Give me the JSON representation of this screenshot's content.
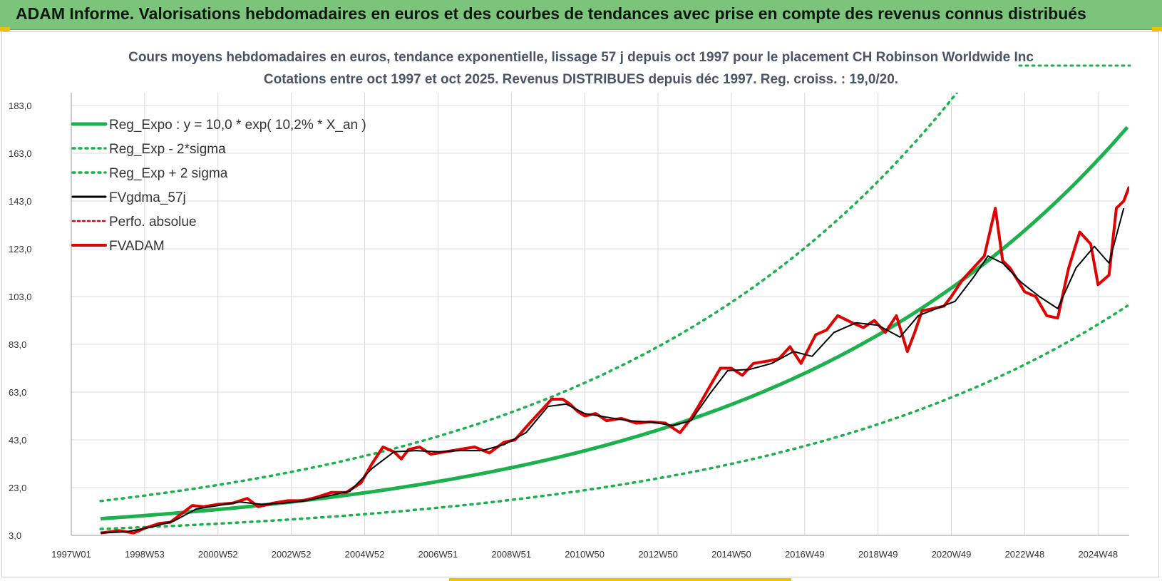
{
  "header": {
    "title": "ADAM Informe. Valorisations hebdomadaires en euros et des courbes de tendances avec prise en compte des revenus connus distribués"
  },
  "colors": {
    "banner": "#7cc47c",
    "regression": "#1db14d",
    "sigma": "#1db14d",
    "gdma": "#000000",
    "adam": "#e00000",
    "perfo": "#e00000",
    "grid": "#d9d9d9"
  },
  "chart_data": {
    "type": "line",
    "title": "Cours moyens hebdomadaires en euros, tendance exponentielle, lissage 57 j depuis oct 1997 pour le placement CH Robinson Worldwide Inc",
    "subtitle": "Cotations entre oct 1997 et oct 2025.  Revenus DISTRIBUES depuis déc 1997. Reg. croiss. : 19,0/20.",
    "xlabel": "",
    "ylabel": "",
    "xlim": [
      1997.0,
      2025.85
    ],
    "ylim": [
      3.0,
      183.0
    ],
    "y_ticks": [
      3.0,
      23.0,
      43.0,
      63.0,
      83.0,
      103.0,
      123.0,
      143.0,
      163.0,
      183.0
    ],
    "y_tick_labels": [
      "3,0",
      "23,0",
      "43,0",
      "63,0",
      "83,0",
      "103,0",
      "123,0",
      "143,0",
      "163,0",
      "183,0"
    ],
    "x_ticks": [
      1997.0,
      1999.0,
      2001.0,
      2003.0,
      2005.0,
      2007.0,
      2009.0,
      2011.0,
      2013.0,
      2015.0,
      2017.0,
      2019.0,
      2021.0,
      2023.0,
      2025.0
    ],
    "x_tick_labels": [
      "1997W01",
      "1998W53",
      "2000W52",
      "2002W52",
      "2004W52",
      "2006W51",
      "2008W51",
      "2010W50",
      "2012W50",
      "2014W50",
      "2016W49",
      "2018W49",
      "2020W49",
      "2022W48",
      "2024W48"
    ],
    "legend_position": "top-left",
    "legend": [
      {
        "label": "Reg_Expo : y = 10,0 * exp( 10,2% *  X_an )",
        "style": "solid-green"
      },
      {
        "label": "Reg_Exp - 2*sigma",
        "style": "dotted-green"
      },
      {
        "label": "Reg_Exp + 2 sigma",
        "style": "dotted-green"
      },
      {
        "label": "FVgdma_57j",
        "style": "solid-black"
      },
      {
        "label": "Perfo. absolue",
        "style": "dotted-red"
      },
      {
        "label": "FVADAM",
        "style": "solid-red"
      }
    ],
    "regression": {
      "a": 10.0,
      "b": 0.102,
      "x_start": 1997.8,
      "x_end": 2025.85,
      "minus_factor": 0.57,
      "plus_factor": 1.74
    },
    "series": [
      {
        "name": "FVADAM",
        "x": [
          1997.8,
          1998.3,
          1998.7,
          1999.0,
          1999.4,
          1999.7,
          2000.0,
          2000.3,
          2000.6,
          2001.0,
          2001.4,
          2001.8,
          2002.1,
          2002.5,
          2002.9,
          2003.3,
          2003.7,
          2004.1,
          2004.5,
          2004.9,
          2005.2,
          2005.5,
          2005.8,
          2006.0,
          2006.2,
          2006.5,
          2006.8,
          2007.2,
          2007.6,
          2008.0,
          2008.4,
          2008.8,
          2009.1,
          2009.5,
          2009.8,
          2010.1,
          2010.4,
          2010.6,
          2010.8,
          2011.0,
          2011.3,
          2011.6,
          2012.0,
          2012.4,
          2012.8,
          2013.2,
          2013.6,
          2013.9,
          2014.1,
          2014.4,
          2014.7,
          2015.0,
          2015.3,
          2015.6,
          2016.0,
          2016.3,
          2016.6,
          2016.9,
          2017.3,
          2017.6,
          2017.9,
          2018.3,
          2018.6,
          2018.9,
          2019.2,
          2019.5,
          2019.8,
          2020.0,
          2020.2,
          2020.5,
          2020.8,
          2021.0,
          2021.3,
          2021.6,
          2021.9,
          2022.2,
          2022.4,
          2022.6,
          2022.8,
          2023.0,
          2023.3,
          2023.6,
          2023.9,
          2024.2,
          2024.5,
          2024.8,
          2025.0,
          2025.3,
          2025.5,
          2025.7,
          2025.85
        ],
        "values": [
          4.0,
          5.0,
          4.0,
          6.0,
          8.0,
          8.5,
          12.0,
          15.5,
          15.0,
          16.0,
          16.5,
          18.5,
          15.0,
          16.5,
          17.5,
          17.5,
          19.0,
          21.0,
          21.0,
          25.0,
          33.0,
          40.0,
          38.0,
          35.0,
          39.0,
          40.0,
          37.0,
          38.0,
          39.0,
          40.0,
          37.5,
          42.0,
          43.0,
          50.0,
          55.0,
          60.0,
          60.0,
          58.0,
          55.0,
          53.0,
          54.0,
          51.0,
          52.0,
          50.0,
          50.5,
          50.0,
          46.0,
          52.0,
          57.0,
          65.0,
          73.0,
          73.0,
          70.0,
          75.0,
          76.0,
          77.0,
          82.0,
          75.0,
          87.0,
          89.0,
          95.0,
          92.0,
          90.0,
          93.0,
          88.0,
          95.0,
          80.0,
          88.0,
          97.0,
          98.0,
          99.0,
          103.0,
          110.0,
          115.0,
          120.0,
          140.0,
          118.0,
          115.0,
          110.0,
          105.0,
          103.0,
          95.0,
          94.0,
          115.0,
          130.0,
          125.0,
          108.0,
          112.0,
          140.0,
          143.0,
          149.0
        ]
      },
      {
        "name": "FVgdma_57j",
        "x": [
          1997.8,
          1998.5,
          1999.2,
          1999.8,
          2000.4,
          2001.0,
          2001.6,
          2002.2,
          2002.8,
          2003.4,
          2004.0,
          2004.6,
          2005.2,
          2005.8,
          2006.4,
          2007.0,
          2007.6,
          2008.2,
          2008.8,
          2009.4,
          2010.0,
          2010.5,
          2011.0,
          2011.6,
          2012.2,
          2012.8,
          2013.4,
          2013.9,
          2014.4,
          2014.9,
          2015.5,
          2016.1,
          2016.7,
          2017.2,
          2017.8,
          2018.4,
          2019.0,
          2019.6,
          2020.1,
          2020.6,
          2021.1,
          2021.6,
          2022.0,
          2022.4,
          2022.9,
          2023.4,
          2023.9,
          2024.4,
          2024.9,
          2025.3,
          2025.7
        ],
        "values": [
          4.0,
          4.5,
          6.5,
          9.0,
          14.0,
          15.5,
          17.0,
          16.0,
          16.5,
          17.5,
          19.5,
          21.5,
          31.0,
          38.0,
          38.5,
          38.0,
          38.5,
          38.5,
          41.0,
          46.0,
          57.0,
          58.0,
          54.0,
          52.5,
          51.0,
          50.5,
          49.0,
          51.0,
          62.0,
          72.0,
          72.5,
          75.0,
          80.0,
          78.0,
          88.0,
          92.0,
          91.0,
          86.0,
          95.0,
          98.0,
          101.0,
          111.0,
          120.0,
          117.0,
          109.0,
          103.0,
          98.0,
          115.0,
          124.0,
          117.0,
          140.0
        ]
      }
    ]
  }
}
